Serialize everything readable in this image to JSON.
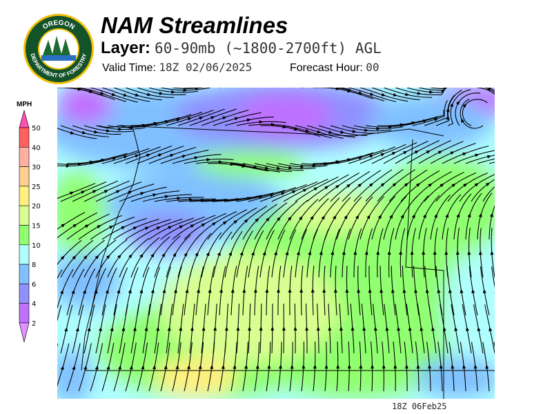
{
  "header": {
    "title": "NAM Streamlines",
    "layer_label": "Layer:",
    "layer_value": "60-90mb (~1800-2700ft) AGL",
    "valid_label": "Valid Time:",
    "valid_value": "18Z 02/06/2025",
    "forecast_label": "Forecast Hour:",
    "forecast_value": "00"
  },
  "logo": {
    "top_text": "OREGON",
    "bottom_text": "DEPARTMENT OF FORESTRY"
  },
  "legend": {
    "unit": "MPH",
    "bins": [
      {
        "label": "50",
        "color": "#ff6060"
      },
      {
        "label": "40",
        "color": "#ffb0a0"
      },
      {
        "label": "30",
        "color": "#ffd090"
      },
      {
        "label": "25",
        "color": "#fff080"
      },
      {
        "label": "20",
        "color": "#d8ff90"
      },
      {
        "label": "15",
        "color": "#90ff70"
      },
      {
        "label": "10",
        "color": "#b0ffff"
      },
      {
        "label": "8",
        "color": "#80c0ff"
      },
      {
        "label": "6",
        "color": "#9090ff"
      },
      {
        "label": "4",
        "color": "#c070ff"
      },
      {
        "label": "2",
        "color": "#e090ff"
      }
    ],
    "top_arrow_color": "#ff50b0"
  },
  "footer": {
    "timestamp": "18Z 06Feb25"
  }
}
